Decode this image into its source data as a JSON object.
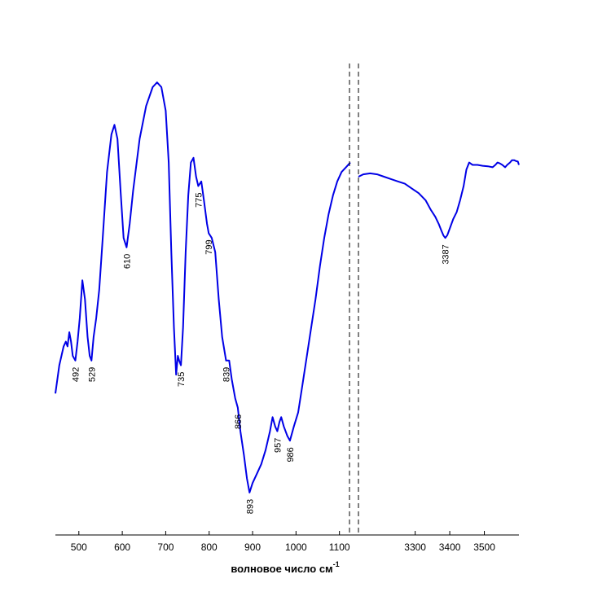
{
  "chart_data": {
    "type": "line",
    "title": "",
    "xlabel": "волновое число см",
    "xlabel_superscript": "-1",
    "ylabel": "",
    "grid": false,
    "legend": "none",
    "line_color": "#0000e6",
    "x_axis_break": true,
    "segments": [
      {
        "xlim": [
          446,
          1125
        ],
        "ticks": [
          500,
          600,
          700,
          800,
          900,
          1000,
          1100
        ],
        "points": [
          [
            446,
            0.3
          ],
          [
            455,
            0.36
          ],
          [
            465,
            0.4
          ],
          [
            470,
            0.41
          ],
          [
            474,
            0.4
          ],
          [
            478,
            0.43
          ],
          [
            482,
            0.41
          ],
          [
            486,
            0.38
          ],
          [
            492,
            0.37
          ],
          [
            497,
            0.41
          ],
          [
            502,
            0.46
          ],
          [
            508,
            0.54
          ],
          [
            514,
            0.5
          ],
          [
            520,
            0.42
          ],
          [
            525,
            0.38
          ],
          [
            529,
            0.37
          ],
          [
            534,
            0.42
          ],
          [
            540,
            0.46
          ],
          [
            547,
            0.52
          ],
          [
            555,
            0.63
          ],
          [
            565,
            0.77
          ],
          [
            575,
            0.85
          ],
          [
            582,
            0.87
          ],
          [
            589,
            0.84
          ],
          [
            596,
            0.73
          ],
          [
            603,
            0.63
          ],
          [
            610,
            0.61
          ],
          [
            617,
            0.66
          ],
          [
            625,
            0.73
          ],
          [
            640,
            0.84
          ],
          [
            655,
            0.91
          ],
          [
            670,
            0.95
          ],
          [
            680,
            0.96
          ],
          [
            690,
            0.95
          ],
          [
            700,
            0.9
          ],
          [
            707,
            0.79
          ],
          [
            713,
            0.6
          ],
          [
            719,
            0.44
          ],
          [
            724,
            0.34
          ],
          [
            728,
            0.38
          ],
          [
            731,
            0.37
          ],
          [
            735,
            0.36
          ],
          [
            740,
            0.44
          ],
          [
            746,
            0.6
          ],
          [
            752,
            0.72
          ],
          [
            758,
            0.79
          ],
          [
            764,
            0.8
          ],
          [
            770,
            0.76
          ],
          [
            775,
            0.74
          ],
          [
            782,
            0.75
          ],
          [
            788,
            0.71
          ],
          [
            795,
            0.66
          ],
          [
            799,
            0.64
          ],
          [
            806,
            0.63
          ],
          [
            814,
            0.6
          ],
          [
            822,
            0.5
          ],
          [
            830,
            0.42
          ],
          [
            839,
            0.37
          ],
          [
            846,
            0.37
          ],
          [
            852,
            0.33
          ],
          [
            860,
            0.29
          ],
          [
            866,
            0.27
          ],
          [
            872,
            0.22
          ],
          [
            880,
            0.17
          ],
          [
            887,
            0.12
          ],
          [
            893,
            0.09
          ],
          [
            900,
            0.11
          ],
          [
            910,
            0.13
          ],
          [
            920,
            0.15
          ],
          [
            930,
            0.18
          ],
          [
            940,
            0.22
          ],
          [
            946,
            0.25
          ],
          [
            952,
            0.23
          ],
          [
            957,
            0.22
          ],
          [
            962,
            0.24
          ],
          [
            966,
            0.25
          ],
          [
            972,
            0.23
          ],
          [
            980,
            0.21
          ],
          [
            986,
            0.2
          ],
          [
            995,
            0.23
          ],
          [
            1005,
            0.26
          ],
          [
            1015,
            0.32
          ],
          [
            1025,
            0.38
          ],
          [
            1035,
            0.44
          ],
          [
            1045,
            0.5
          ],
          [
            1055,
            0.57
          ],
          [
            1065,
            0.63
          ],
          [
            1075,
            0.68
          ],
          [
            1085,
            0.72
          ],
          [
            1095,
            0.75
          ],
          [
            1105,
            0.77
          ],
          [
            1115,
            0.78
          ],
          [
            1125,
            0.79
          ]
        ]
      },
      {
        "xlim": [
          3136,
          3600
        ],
        "ticks": [
          3300,
          3400,
          3500
        ],
        "points": [
          [
            3136,
            0.76
          ],
          [
            3150,
            0.765
          ],
          [
            3170,
            0.767
          ],
          [
            3190,
            0.765
          ],
          [
            3210,
            0.76
          ],
          [
            3230,
            0.755
          ],
          [
            3250,
            0.75
          ],
          [
            3270,
            0.745
          ],
          [
            3290,
            0.735
          ],
          [
            3310,
            0.725
          ],
          [
            3330,
            0.71
          ],
          [
            3345,
            0.69
          ],
          [
            3358,
            0.675
          ],
          [
            3368,
            0.66
          ],
          [
            3376,
            0.645
          ],
          [
            3382,
            0.635
          ],
          [
            3387,
            0.63
          ],
          [
            3393,
            0.636
          ],
          [
            3400,
            0.65
          ],
          [
            3410,
            0.67
          ],
          [
            3420,
            0.685
          ],
          [
            3430,
            0.71
          ],
          [
            3440,
            0.74
          ],
          [
            3448,
            0.775
          ],
          [
            3456,
            0.79
          ],
          [
            3466,
            0.785
          ],
          [
            3480,
            0.785
          ],
          [
            3495,
            0.783
          ],
          [
            3510,
            0.782
          ],
          [
            3524,
            0.78
          ],
          [
            3532,
            0.785
          ],
          [
            3538,
            0.79
          ],
          [
            3545,
            0.788
          ],
          [
            3552,
            0.785
          ],
          [
            3560,
            0.78
          ],
          [
            3566,
            0.785
          ],
          [
            3574,
            0.79
          ],
          [
            3580,
            0.795
          ],
          [
            3586,
            0.795
          ],
          [
            3592,
            0.793
          ],
          [
            3597,
            0.792
          ],
          [
            3600,
            0.785
          ]
        ]
      }
    ],
    "peak_labels": [
      {
        "x": 492,
        "text": "492"
      },
      {
        "x": 529,
        "text": "529"
      },
      {
        "x": 610,
        "text": "610"
      },
      {
        "x": 735,
        "text": "735"
      },
      {
        "x": 775,
        "text": "775"
      },
      {
        "x": 799,
        "text": "799"
      },
      {
        "x": 839,
        "text": "839"
      },
      {
        "x": 866,
        "text": "866"
      },
      {
        "x": 893,
        "text": "893"
      },
      {
        "x": 957,
        "text": "957"
      },
      {
        "x": 986,
        "text": "986"
      },
      {
        "x": 3387,
        "text": "3387"
      }
    ]
  }
}
